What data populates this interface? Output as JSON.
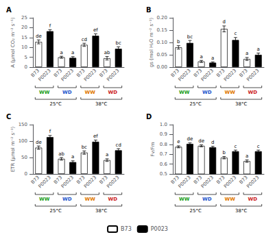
{
  "chart_data": [
    {
      "type": "bar",
      "title": "A",
      "ylabel": "A (μmol CO₂ m⁻² s⁻¹)",
      "categories": [
        "B73",
        "P0023",
        "B73",
        "P0023",
        "B73",
        "P0023",
        "B73",
        "P0023"
      ],
      "values": [
        12.8,
        18.2,
        5.0,
        4.7,
        11.3,
        15.9,
        4.5,
        9.3
      ],
      "errors": [
        1.0,
        0.8,
        0.5,
        0.6,
        0.8,
        1.0,
        0.9,
        1.0
      ],
      "letters": [
        "de",
        "f",
        "a",
        "a",
        "cd",
        "ef",
        "ab",
        "bc"
      ],
      "colors": [
        "white",
        "black",
        "white",
        "black",
        "white",
        "black",
        "white",
        "black"
      ],
      "ylim": [
        0,
        25
      ],
      "yticks": [
        0,
        5,
        10,
        15,
        20,
        25
      ],
      "grid": false,
      "group_labels": [
        {
          "text": "WW",
          "color": "#1a9e1a"
        },
        {
          "text": "WD",
          "color": "#2255cc"
        },
        {
          "text": "WW",
          "color": "#e07800"
        },
        {
          "text": "WD",
          "color": "#cc2222"
        }
      ],
      "temp_labels": [
        "25°C",
        "38°C"
      ]
    },
    {
      "type": "bar",
      "title": "B",
      "ylabel": "gs (mol H₂O m⁻² s⁻¹)",
      "categories": [
        "B73",
        "P0023",
        "B73",
        "P0023",
        "B73",
        "P0023",
        "B73",
        "P0023"
      ],
      "values": [
        0.08,
        0.098,
        0.023,
        0.018,
        0.155,
        0.11,
        0.033,
        0.05
      ],
      "errors": [
        0.007,
        0.01,
        0.004,
        0.003,
        0.012,
        0.01,
        0.006,
        0.007
      ],
      "letters": [
        "b",
        "bc",
        "a",
        "a",
        "d",
        "c",
        "a",
        "a"
      ],
      "colors": [
        "white",
        "black",
        "white",
        "black",
        "white",
        "black",
        "white",
        "black"
      ],
      "ylim": [
        0,
        0.2
      ],
      "yticks": [
        {
          "value": 0.0,
          "label": "0.00"
        },
        {
          "value": 0.05,
          "label": "0.05"
        },
        {
          "value": 0.1,
          "label": "0.10"
        },
        {
          "value": 0.15,
          "label": "0.15"
        },
        {
          "value": 0.2,
          "label": "0.20"
        }
      ],
      "grid": false,
      "group_labels": [
        {
          "text": "WW",
          "color": "#1a9e1a"
        },
        {
          "text": "WD",
          "color": "#2255cc"
        },
        {
          "text": "WW",
          "color": "#e07800"
        },
        {
          "text": "WD",
          "color": "#cc2222"
        }
      ],
      "temp_labels": [
        "25°C",
        "38°C"
      ]
    },
    {
      "type": "bar",
      "title": "C",
      "ylabel": "ETR (μmol m⁻² s⁻¹)",
      "categories": [
        "B73",
        "P0023",
        "B73",
        "P0023",
        "B73",
        "P0023",
        "B73",
        "P0023"
      ],
      "values": [
        80,
        112,
        46,
        36,
        65,
        98,
        42,
        72
      ],
      "errors": [
        5,
        5,
        4,
        4,
        5,
        5,
        4,
        5
      ],
      "letters": [
        "de",
        "f",
        "ab",
        "a",
        "bc",
        "ef",
        "a",
        "cd"
      ],
      "colors": [
        "white",
        "black",
        "white",
        "black",
        "white",
        "black",
        "white",
        "black"
      ],
      "ylim": [
        0,
        150
      ],
      "yticks": [
        0,
        50,
        100,
        150
      ],
      "grid": false,
      "group_labels": [
        {
          "text": "WW",
          "color": "#1a9e1a"
        },
        {
          "text": "WD",
          "color": "#2255cc"
        },
        {
          "text": "WW",
          "color": "#e07800"
        },
        {
          "text": "WD",
          "color": "#cc2222"
        }
      ],
      "temp_labels": [
        "25°C",
        "38°C"
      ]
    },
    {
      "type": "bar",
      "title": "D",
      "ylabel": "Fv/Fm",
      "categories": [
        "B73",
        "P0023",
        "B73",
        "P0023",
        "B73",
        "P0023",
        "B73",
        "P0023"
      ],
      "values": [
        0.775,
        0.805,
        0.785,
        0.77,
        0.665,
        0.73,
        0.63,
        0.73
      ],
      "errors": [
        0.01,
        0.01,
        0.01,
        0.01,
        0.012,
        0.012,
        0.012,
        0.012
      ],
      "letters": [
        "e",
        "de",
        "de",
        "d",
        "b",
        "c",
        "a",
        "c"
      ],
      "colors": [
        "white",
        "black",
        "white",
        "black",
        "white",
        "black",
        "white",
        "black"
      ],
      "ylim": [
        0.5,
        1.0
      ],
      "yticks": [
        0.5,
        0.6,
        0.7,
        0.8,
        0.9,
        {
          "value": 1.0,
          "label": "1.0"
        }
      ],
      "grid": false,
      "group_labels": [
        {
          "text": "WW",
          "color": "#1a9e1a"
        },
        {
          "text": "WD",
          "color": "#2255cc"
        },
        {
          "text": "WW",
          "color": "#e07800"
        },
        {
          "text": "WD",
          "color": "#cc2222"
        }
      ],
      "temp_labels": [
        "25°C",
        "38°C"
      ]
    }
  ],
  "legend": "bottom",
  "legend_entries": [
    {
      "name": "B73",
      "color": "white"
    },
    {
      "name": "P0023",
      "color": "black"
    }
  ]
}
